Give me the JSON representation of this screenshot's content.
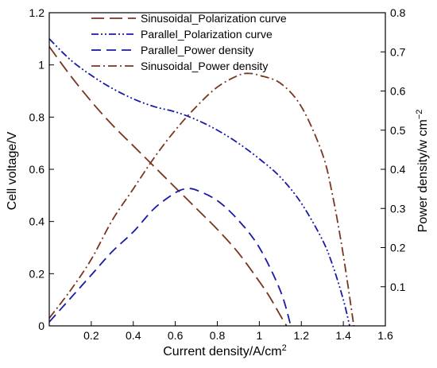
{
  "chart_data": {
    "type": "line",
    "title": "",
    "xlabel": "Current density/A/cm",
    "xlabel_sup": "2",
    "ylabel_left": "Cell voltage/V",
    "ylabel_right": "Power density/w cm",
    "ylabel_right_sup": "−2",
    "xlim": [
      0,
      1.6
    ],
    "ylim_left": [
      0,
      1.2
    ],
    "ylim_right": [
      0,
      0.8
    ],
    "x_ticks": [
      0.2,
      0.4,
      0.6,
      0.8,
      1,
      1.2,
      1.4,
      1.6
    ],
    "x_tick_labels": [
      "0.2",
      "0.4",
      "0.6",
      "0.8",
      "1",
      "1.2",
      "1.4",
      "1.6"
    ],
    "y_left_ticks": [
      0,
      0.2,
      0.4,
      0.6,
      0.8,
      1,
      1.2
    ],
    "y_left_tick_labels": [
      "0",
      "0.2",
      "0.4",
      "0.6",
      "0.8",
      "1",
      "1.2"
    ],
    "y_right_ticks": [
      0.1,
      0.2,
      0.3,
      0.4,
      0.5,
      0.6,
      0.7,
      0.8
    ],
    "y_right_tick_labels": [
      "0.1",
      "0.2",
      "0.3",
      "0.4",
      "0.5",
      "0.6",
      "0.7",
      "0.8"
    ],
    "grid": false,
    "legend_position": "top",
    "series": [
      {
        "name": "Sinusoidal_Polarization curve",
        "axis": "left",
        "color": "#7a3520",
        "style": "long-dash",
        "x": [
          0.0,
          0.1,
          0.2,
          0.3,
          0.4,
          0.5,
          0.6,
          0.7,
          0.8,
          0.9,
          1.0,
          1.05,
          1.1,
          1.13
        ],
        "y": [
          1.07,
          0.96,
          0.86,
          0.77,
          0.69,
          0.61,
          0.53,
          0.45,
          0.37,
          0.28,
          0.17,
          0.11,
          0.04,
          0.0
        ]
      },
      {
        "name": "Parallel_Polarization curve",
        "axis": "left",
        "color": "#1a1aa6",
        "style": "dash-dot-dot",
        "x": [
          0.0,
          0.1,
          0.2,
          0.3,
          0.4,
          0.5,
          0.6,
          0.7,
          0.8,
          0.9,
          1.0,
          1.1,
          1.2,
          1.3,
          1.35,
          1.4,
          1.43
        ],
        "y": [
          1.1,
          1.02,
          0.96,
          0.91,
          0.87,
          0.84,
          0.82,
          0.79,
          0.75,
          0.7,
          0.64,
          0.57,
          0.47,
          0.33,
          0.23,
          0.1,
          0.0
        ]
      },
      {
        "name": "Parallel_Power density",
        "axis": "right",
        "color": "#1a1aa6",
        "style": "dash",
        "x": [
          0.0,
          0.1,
          0.2,
          0.3,
          0.4,
          0.5,
          0.6,
          0.65,
          0.7,
          0.8,
          0.9,
          1.0,
          1.1,
          1.15
        ],
        "y": [
          0.01,
          0.07,
          0.13,
          0.19,
          0.24,
          0.3,
          0.34,
          0.35,
          0.347,
          0.32,
          0.27,
          0.2,
          0.09,
          0.0
        ]
      },
      {
        "name": "Sinusoidal_Power density",
        "axis": "right",
        "color": "#7a3520",
        "style": "dash-dot",
        "x": [
          0.0,
          0.1,
          0.2,
          0.3,
          0.4,
          0.5,
          0.6,
          0.7,
          0.8,
          0.9,
          0.95,
          1.0,
          1.1,
          1.2,
          1.3,
          1.35,
          1.4,
          1.45
        ],
        "y": [
          0.02,
          0.09,
          0.17,
          0.27,
          0.35,
          0.43,
          0.5,
          0.56,
          0.61,
          0.64,
          0.645,
          0.64,
          0.62,
          0.56,
          0.44,
          0.33,
          0.18,
          0.0
        ]
      }
    ]
  }
}
